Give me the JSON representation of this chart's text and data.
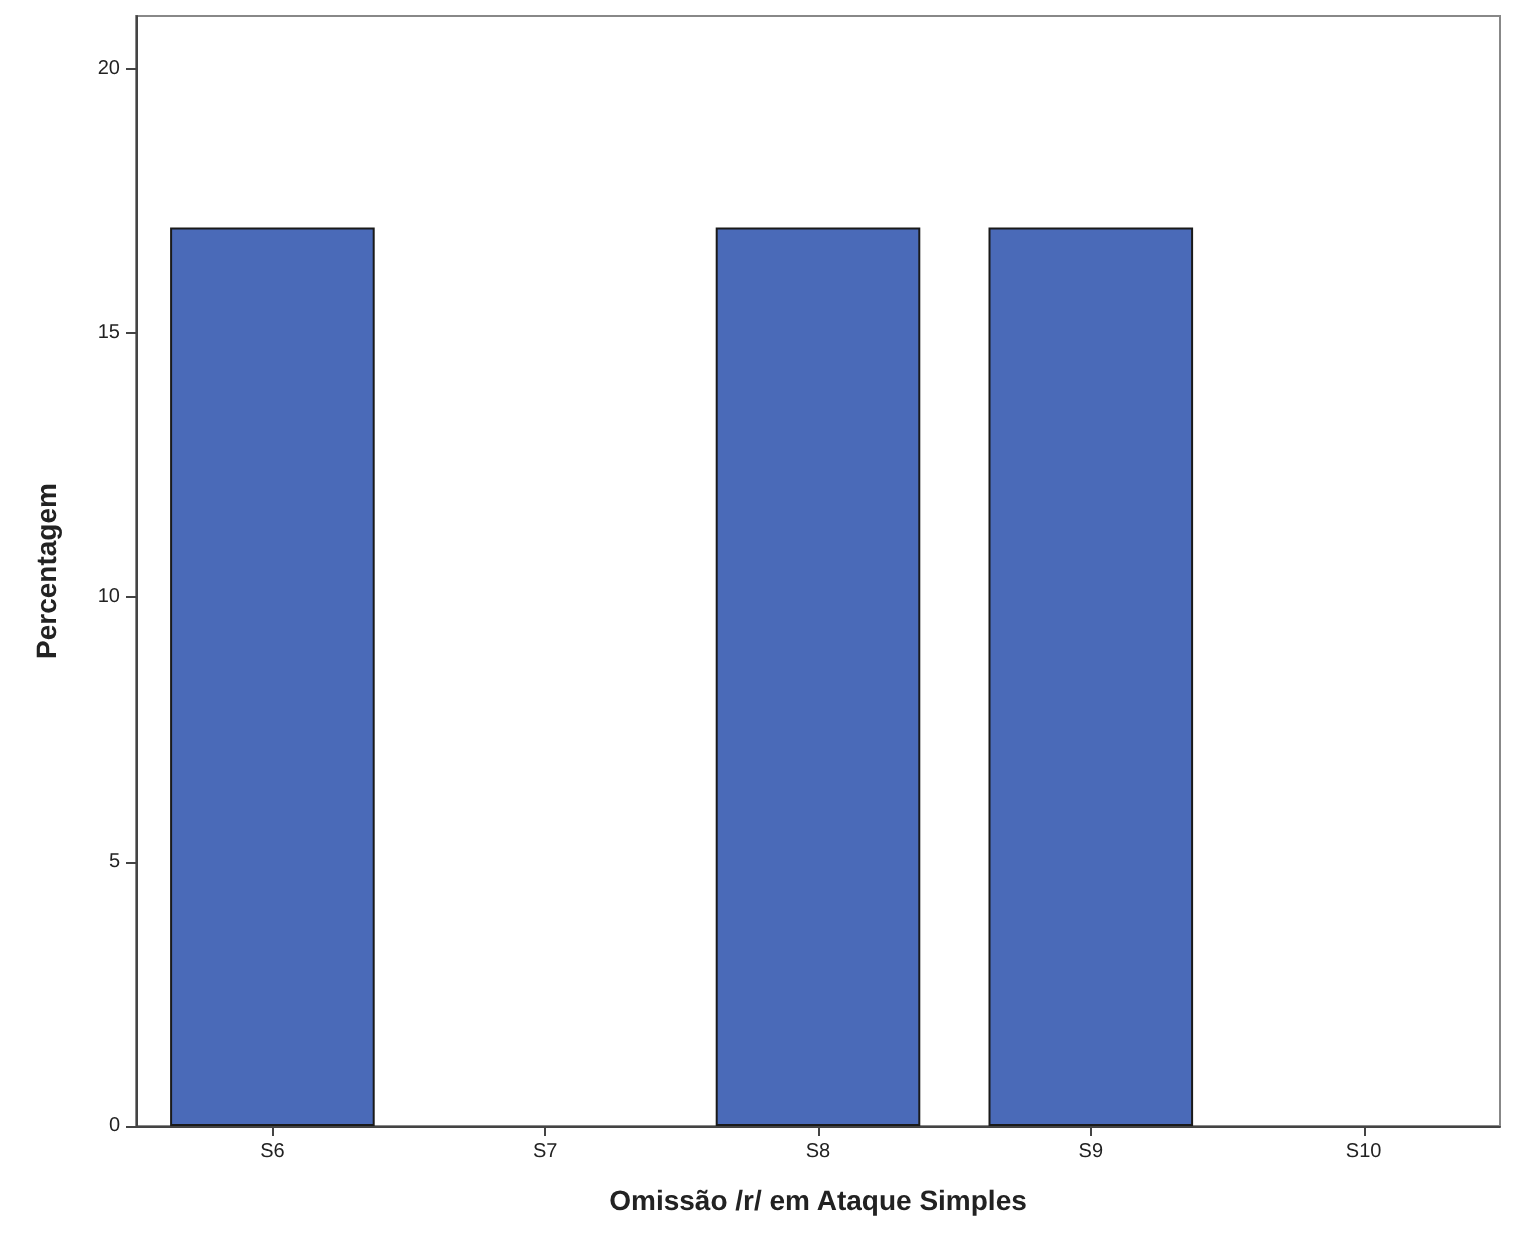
{
  "chart_data": {
    "type": "bar",
    "xlabel": "Omissão /r/ em Ataque Simples",
    "ylabel": "Percentagem",
    "categories": [
      "S6",
      "S7",
      "S8",
      "S9",
      "S10"
    ],
    "values": [
      17,
      0,
      17,
      17,
      0
    ],
    "color": "#4a6ab8",
    "ylim": [
      0,
      21
    ],
    "yticks": [
      0,
      5,
      10,
      15,
      20
    ],
    "grid": false
  }
}
